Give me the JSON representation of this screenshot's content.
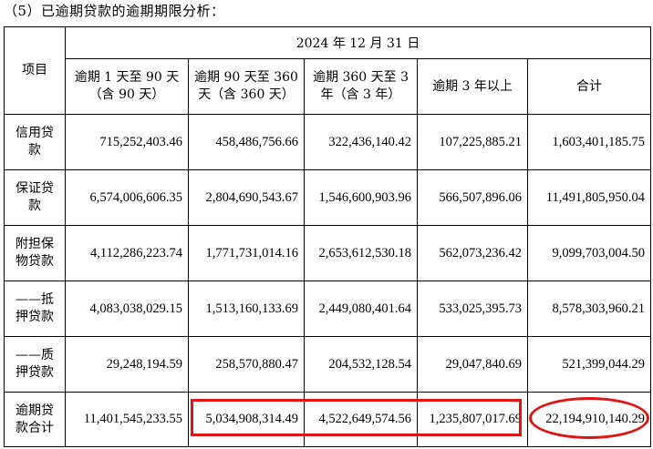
{
  "heading": "（5）已逾期贷款的逾期期限分析：",
  "table": {
    "item_header": "项目",
    "date_header": "2024 年 12 月 31 日",
    "columns": [
      "逾期 1 天至 90 天（含 90 天）",
      "逾期 90 天至 360 天（含 360 天）",
      "逾期 360 天至 3 年（含 3 年）",
      "逾期 3 年以上",
      "合计"
    ],
    "rows": [
      {
        "label": "信用贷款",
        "values": [
          "715,252,403.46",
          "458,486,756.66",
          "322,436,140.42",
          "107,225,885.21",
          "1,603,401,185.75"
        ]
      },
      {
        "label": "保证贷款",
        "values": [
          "6,574,006,606.35",
          "2,804,690,543.67",
          "1,546,600,903.96",
          "566,507,896.06",
          "11,491,805,950.04"
        ]
      },
      {
        "label": "附担保物贷款",
        "values": [
          "4,112,286,223.74",
          "1,771,731,014.16",
          "2,653,612,530.18",
          "562,073,236.42",
          "9,099,703,004.50"
        ]
      },
      {
        "label": "——抵押贷款",
        "values": [
          "4,083,038,029.15",
          "1,513,160,133.69",
          "2,449,080,401.64",
          "533,025,395.73",
          "8,578,303,960.21"
        ]
      },
      {
        "label": "——质押贷款",
        "values": [
          "29,248,194.59",
          "258,570,880.47",
          "204,532,128.54",
          "29,047,840.69",
          "521,399,044.29"
        ]
      },
      {
        "label": "逾期贷款合计",
        "values": [
          "11,401,545,233.55",
          "5,034,908,314.49",
          "4,522,649,574.56",
          "1,235,807,017.69",
          "22,194,910,140.29"
        ]
      }
    ]
  },
  "annotations": {
    "color": "#e11414"
  }
}
